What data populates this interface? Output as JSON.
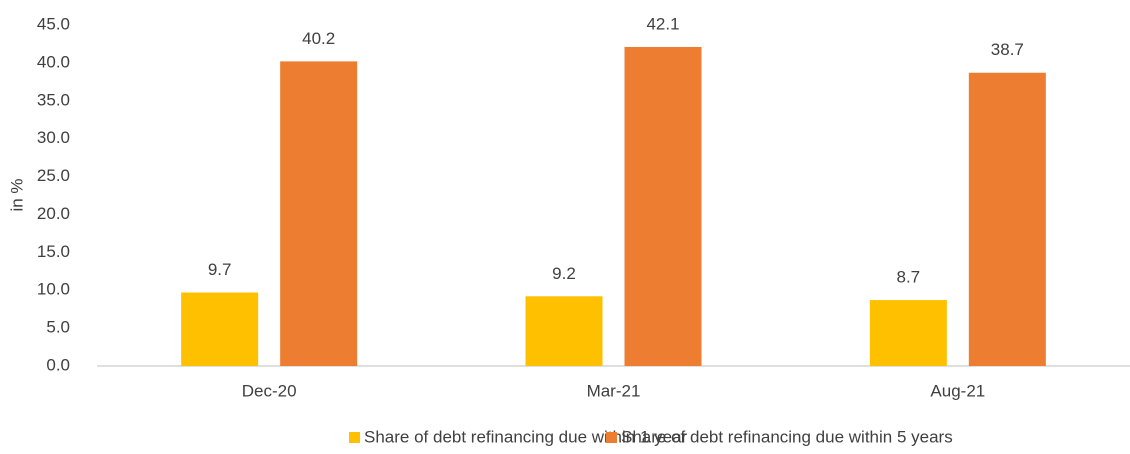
{
  "chart_data": {
    "type": "bar",
    "y_axis_label": "in %",
    "categories": [
      "Dec-20",
      "Mar-21",
      "Aug-21"
    ],
    "series": [
      {
        "name": "Share of debt refinancing due within 1 year",
        "color": "#ffc000",
        "values": [
          9.7,
          9.2,
          8.7
        ]
      },
      {
        "name": "Share of debt refinancing due within 5 years",
        "color": "#ed7d31",
        "values": [
          40.2,
          42.1,
          38.7
        ]
      }
    ],
    "ylim": [
      0,
      45
    ],
    "yticks": [
      {
        "value": 0,
        "label": "0.0"
      },
      {
        "value": 5,
        "label": "5.0"
      },
      {
        "value": 10,
        "label": "10.0"
      },
      {
        "value": 15,
        "label": "15.0"
      },
      {
        "value": 20,
        "label": "20.0"
      },
      {
        "value": 25,
        "label": "25.0"
      },
      {
        "value": 30,
        "label": "30.0"
      },
      {
        "value": 35,
        "label": "35.0"
      },
      {
        "value": 40,
        "label": "40.0"
      },
      {
        "value": 45,
        "label": "45.0"
      }
    ],
    "grid": false,
    "legend": "bottom"
  }
}
